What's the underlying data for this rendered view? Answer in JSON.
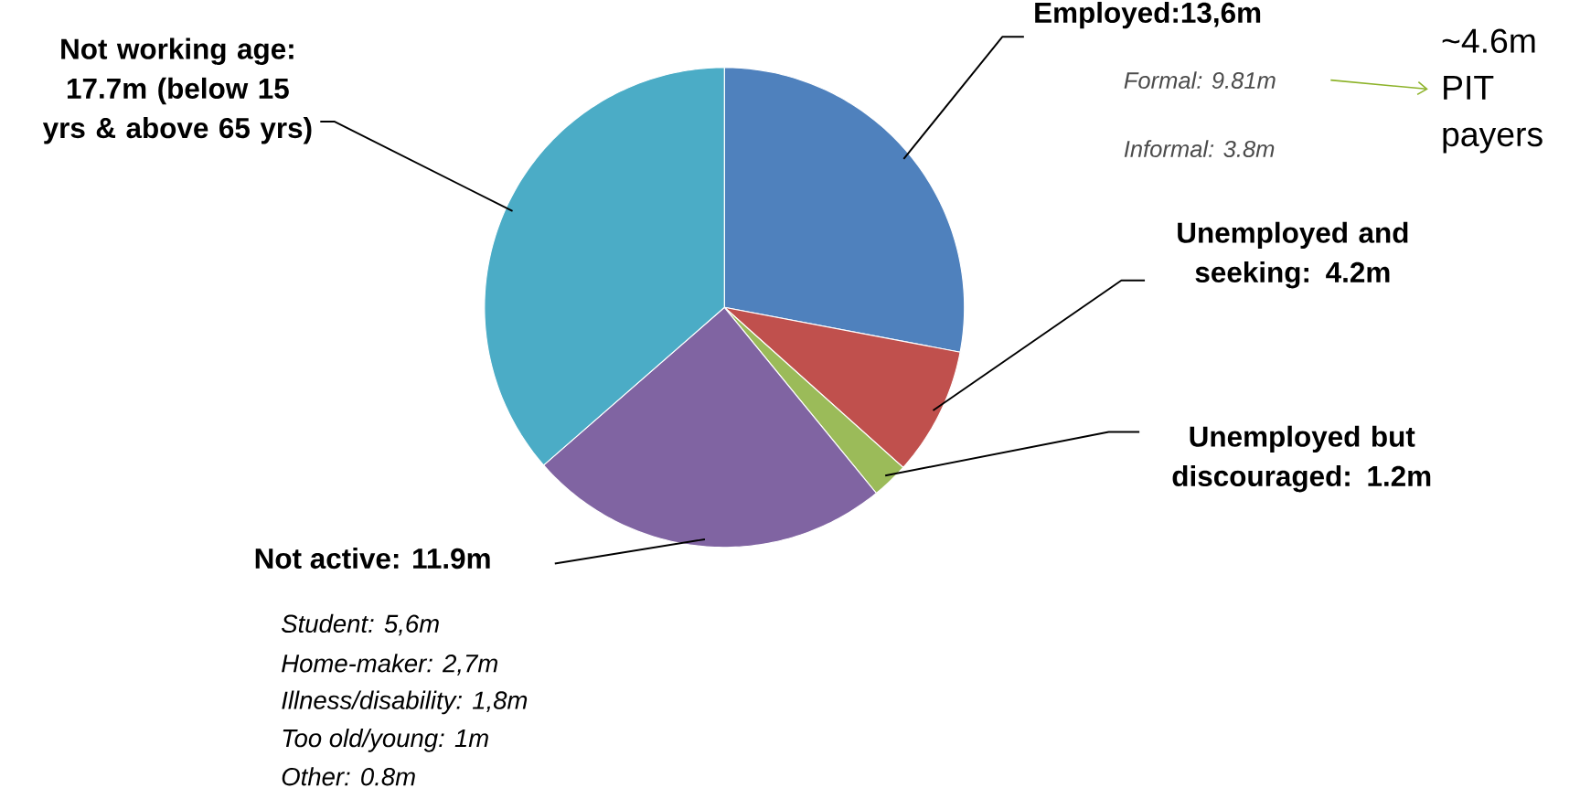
{
  "chart_data": {
    "type": "pie",
    "categories": [
      "Employed:13,6m",
      "Unemployed and seeking: 4.2m",
      "Unemployed but discouraged: 1.2m",
      "Not active: 11.9m",
      "Not working age: 17.7m (below 15 yrs & above 65 yrs)"
    ],
    "values": [
      13.6,
      4.2,
      1.2,
      11.9,
      17.7
    ],
    "colors": [
      "#4f81bd",
      "#c0504d",
      "#9bbb59",
      "#8064a2",
      "#4bacc6"
    ],
    "annotations": [
      "Formal: 9.81m",
      "Informal: 3.8m",
      "~4.6m PIT payers",
      "Student: 5,6m",
      "Home-maker: 2,7m",
      "Illness/disability: 1,8m",
      "Too old/young: 1m",
      "Other: 0.8m"
    ]
  }
}
